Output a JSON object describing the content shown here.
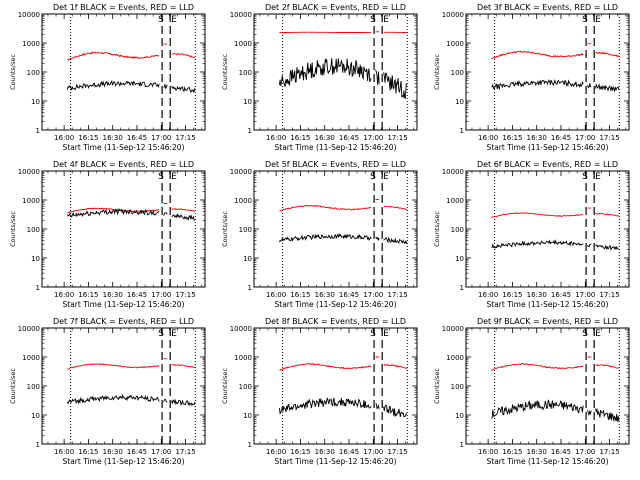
{
  "chart_data": [
    {
      "type": "line",
      "title": "Det 1f BLACK = Events, RED = LLD",
      "xlabel": "Start Time (11-Sep-12 15:46:20)",
      "ylabel": "Counts/sec",
      "yscale": "log",
      "ylim": [
        1,
        10000
      ],
      "xlim": [
        "15:46:20",
        "17:27:00"
      ],
      "ytick_labels": [
        "1",
        "10",
        "100",
        "1000",
        "10000"
      ],
      "xtick_labels": [
        "16:00",
        "16:15",
        "16:30",
        "16:45",
        "17:00",
        "17:15"
      ],
      "markers": [
        "S",
        "E"
      ],
      "series": [
        {
          "name": "RED",
          "color": "#ff0000",
          "y_range": [
            130,
            1500
          ]
        },
        {
          "name": "BLACK",
          "color": "#000000",
          "y_range": [
            12,
            80
          ]
        }
      ]
    },
    {
      "type": "line",
      "title": "Det 2f BLACK = Events, RED = LLD",
      "xlabel": "Start Time (11-Sep-12 15:46:20)",
      "ylabel": "Counts/sec",
      "yscale": "log",
      "ylim": [
        1,
        10000
      ],
      "xlim": [
        "15:46:20",
        "17:27:00"
      ],
      "ytick_labels": [
        "1",
        "10",
        "100",
        "1000",
        "10000"
      ],
      "xtick_labels": [
        "16:00",
        "16:15",
        "16:30",
        "16:45",
        "17:00",
        "17:15"
      ],
      "markers": [
        "S",
        "E"
      ],
      "series": [
        {
          "name": "RED",
          "color": "#ff0000",
          "y_range": [
            2200,
            2500
          ]
        },
        {
          "name": "BLACK",
          "color": "#000000",
          "y_range": [
            2,
            1900
          ]
        }
      ]
    },
    {
      "type": "line",
      "title": "Det 3f BLACK = Events, RED = LLD",
      "xlabel": "Start Time (11-Sep-12 15:46:20)",
      "ylabel": "Counts/sec",
      "yscale": "log",
      "ylim": [
        1,
        10000
      ],
      "xlim": [
        "15:46:20",
        "17:27:00"
      ],
      "ytick_labels": [
        "1",
        "10",
        "100",
        "1000",
        "10000"
      ],
      "xtick_labels": [
        "16:00",
        "16:15",
        "16:30",
        "16:45",
        "17:00",
        "17:15"
      ],
      "markers": [
        "S",
        "E"
      ],
      "series": [
        {
          "name": "RED",
          "color": "#ff0000",
          "y_range": [
            150,
            1500
          ]
        },
        {
          "name": "BLACK",
          "color": "#000000",
          "y_range": [
            12,
            90
          ]
        }
      ]
    },
    {
      "type": "line",
      "title": "Det 4f BLACK = Events, RED = LLD",
      "xlabel": "Start Time (11-Sep-12 15:46:20)",
      "ylabel": "Counts/sec",
      "yscale": "log",
      "ylim": [
        1,
        10000
      ],
      "xlim": [
        "15:46:20",
        "17:27:00"
      ],
      "ytick_labels": [
        "1",
        "10",
        "100",
        "1000",
        "10000"
      ],
      "xtick_labels": [
        "16:00",
        "16:15",
        "16:30",
        "16:45",
        "17:00",
        "17:15"
      ],
      "markers": [
        "S",
        "E"
      ],
      "series": [
        {
          "name": "RED",
          "color": "#ff0000",
          "y_range": [
            250,
            1000
          ]
        },
        {
          "name": "BLACK",
          "color": "#000000",
          "y_range": [
            120,
            800
          ]
        }
      ]
    },
    {
      "type": "line",
      "title": "Det 5f BLACK = Events, RED = LLD",
      "xlabel": "Start Time (11-Sep-12 15:46:20)",
      "ylabel": "Counts/sec",
      "yscale": "log",
      "ylim": [
        1,
        10000
      ],
      "xlim": [
        "15:46:20",
        "17:27:00"
      ],
      "ytick_labels": [
        "1",
        "10",
        "100",
        "1000",
        "10000"
      ],
      "xtick_labels": [
        "16:00",
        "16:15",
        "16:30",
        "16:45",
        "17:00",
        "17:15"
      ],
      "markers": [
        "S",
        "E"
      ],
      "series": [
        {
          "name": "RED",
          "color": "#ff0000",
          "y_range": [
            250,
            1500
          ]
        },
        {
          "name": "BLACK",
          "color": "#000000",
          "y_range": [
            20,
            100
          ]
        }
      ]
    },
    {
      "type": "line",
      "title": "Det 6f BLACK = Events, RED = LLD",
      "xlabel": "Start Time (11-Sep-12 15:46:20)",
      "ylabel": "Counts/sec",
      "yscale": "log",
      "ylim": [
        1,
        10000
      ],
      "xlim": [
        "15:46:20",
        "17:27:00"
      ],
      "ytick_labels": [
        "1",
        "10",
        "100",
        "1000",
        "10000"
      ],
      "xtick_labels": [
        "16:00",
        "16:15",
        "16:30",
        "16:45",
        "17:00",
        "17:15"
      ],
      "markers": [
        "S",
        "E"
      ],
      "series": [
        {
          "name": "RED",
          "color": "#ff0000",
          "y_range": [
            170,
            700
          ]
        },
        {
          "name": "BLACK",
          "color": "#000000",
          "y_range": [
            12,
            60
          ]
        }
      ]
    },
    {
      "type": "line",
      "title": "Det 7f BLACK = Events, RED = LLD",
      "xlabel": "Start Time (11-Sep-12 15:46:20)",
      "ylabel": "Counts/sec",
      "yscale": "log",
      "ylim": [
        1,
        10000
      ],
      "xlim": [
        "15:46:20",
        "17:27:00"
      ],
      "ytick_labels": [
        "1",
        "10",
        "100",
        "1000",
        "10000"
      ],
      "xtick_labels": [
        "16:00",
        "16:15",
        "16:30",
        "16:45",
        "17:00",
        "17:15"
      ],
      "markers": [
        "S",
        "E"
      ],
      "series": [
        {
          "name": "RED",
          "color": "#ff0000",
          "y_range": [
            250,
            1200
          ]
        },
        {
          "name": "BLACK",
          "color": "#000000",
          "y_range": [
            12,
            80
          ]
        }
      ]
    },
    {
      "type": "line",
      "title": "Det 8f BLACK = Events, RED = LLD",
      "xlabel": "Start Time (11-Sep-12 15:46:20)",
      "ylabel": "Counts/sec",
      "yscale": "log",
      "ylim": [
        1,
        10000
      ],
      "xlim": [
        "15:46:20",
        "17:27:00"
      ],
      "ytick_labels": [
        "1",
        "10",
        "100",
        "1000",
        "10000"
      ],
      "xtick_labels": [
        "16:00",
        "16:15",
        "16:30",
        "16:45",
        "17:00",
        "17:15"
      ],
      "markers": [
        "S",
        "E"
      ],
      "series": [
        {
          "name": "RED",
          "color": "#ff0000",
          "y_range": [
            200,
            1500
          ]
        },
        {
          "name": "BLACK",
          "color": "#000000",
          "y_range": [
            3,
            100
          ]
        }
      ]
    },
    {
      "type": "line",
      "title": "Det 9f BLACK = Events, RED = LLD",
      "xlabel": "Start Time (11-Sep-12 15:46:20)",
      "ylabel": "Counts/sec",
      "yscale": "log",
      "ylim": [
        1,
        10000
      ],
      "xlim": [
        "15:46:20",
        "17:27:00"
      ],
      "ytick_labels": [
        "1",
        "10",
        "100",
        "1000",
        "10000"
      ],
      "xtick_labels": [
        "16:00",
        "16:15",
        "16:30",
        "16:45",
        "17:00",
        "17:15"
      ],
      "markers": [
        "S",
        "E"
      ],
      "series": [
        {
          "name": "RED",
          "color": "#ff0000",
          "y_range": [
            200,
            1500
          ]
        },
        {
          "name": "BLACK",
          "color": "#000000",
          "y_range": [
            2,
            90
          ]
        }
      ]
    }
  ]
}
